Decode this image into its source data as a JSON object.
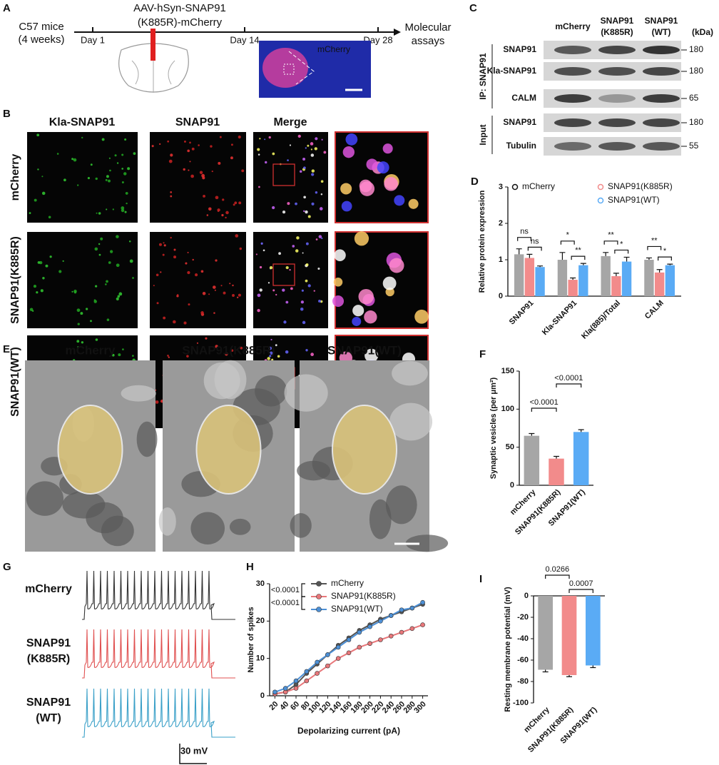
{
  "panel_a": {
    "letter": "A",
    "cohort": [
      "C57 mice",
      "(4 weeks)"
    ],
    "virus": [
      "AAV-hSyn-SNAP91",
      "(K885R)-mCherry"
    ],
    "timepoints": [
      "Day 1",
      "Day 14",
      "Day 28"
    ],
    "endpoint": [
      "Molecular",
      "assays"
    ],
    "image_label": "mCherry"
  },
  "panel_b": {
    "letter": "B",
    "columns": [
      "Kla-SNAP91",
      "SNAP91",
      "Merge"
    ],
    "rows": [
      "mCherry",
      "SNAP91(K885R)",
      "SNAP91(WT)"
    ]
  },
  "panel_c": {
    "letter": "C",
    "lanes": [
      [
        "mCherry"
      ],
      [
        "SNAP91",
        "(K885R)"
      ],
      [
        "SNAP91",
        "(WT)"
      ]
    ],
    "unit": "(kDa)",
    "groups": [
      "IP: SNAP91",
      "Input"
    ],
    "blots": [
      {
        "protein": "SNAP91",
        "kda": 180
      },
      {
        "protein": "Kla-SNAP91",
        "kda": 180
      },
      {
        "protein": "CALM",
        "kda": 65
      },
      {
        "protein": "SNAP91",
        "kda": 180
      },
      {
        "protein": "Tubulin",
        "kda": 55
      }
    ]
  },
  "panel_e": {
    "letter": "E",
    "titles": [
      "mCherry",
      "SNAP91(K885R)",
      "SNAP91(WT)"
    ]
  },
  "panel_g": {
    "letter": "G",
    "traces": [
      [
        "mCherry"
      ],
      [
        "SNAP91",
        "(K885R)"
      ],
      [
        "SNAP91",
        "(WT)"
      ]
    ],
    "scale_bar": "30 mV"
  },
  "chart_data": [
    {
      "label": "D",
      "type": "bar",
      "categories": [
        "SNAP91",
        "Kla-SNAP91",
        "Kla(885)/Total",
        "CALM"
      ],
      "series": [
        {
          "name": "mCherry",
          "color": "#a6a6a6",
          "values": [
            1.15,
            1.0,
            1.1,
            1.0
          ],
          "errors": [
            0.15,
            0.2,
            0.1,
            0.05
          ]
        },
        {
          "name": "SNAP91(K885R)",
          "color": "#f28b8b",
          "values": [
            1.05,
            0.45,
            0.55,
            0.65
          ],
          "errors": [
            0.1,
            0.05,
            0.08,
            0.08
          ]
        },
        {
          "name": "SNAP91(WT)",
          "color": "#5aabf5",
          "values": [
            0.8,
            0.85,
            0.95,
            0.85
          ],
          "errors": [
            0.03,
            0.05,
            0.12,
            0.03
          ]
        }
      ],
      "ylabel": "Relative protein expression",
      "ylim": [
        0,
        3
      ],
      "yticks": [
        0,
        1,
        2,
        3
      ],
      "significance": [
        [
          "ns",
          "ns"
        ],
        [
          "*",
          "**"
        ],
        [
          "**",
          "*"
        ],
        [
          "**",
          "*"
        ]
      ]
    },
    {
      "label": "F",
      "type": "bar",
      "categories": [
        "mCherry",
        "SNAP91(K885R)",
        "SNAP91(WT)"
      ],
      "values": [
        65,
        35,
        70
      ],
      "errors": [
        3,
        3,
        3
      ],
      "colors": [
        "#a6a6a6",
        "#f28b8b",
        "#5aabf5"
      ],
      "ylabel": "Synaptic vesicles (per μm²)",
      "ylim": [
        0,
        150
      ],
      "yticks": [
        0,
        50,
        100,
        150
      ],
      "comparisons": [
        "<0.0001",
        "<0.0001"
      ]
    },
    {
      "label": "H",
      "type": "line",
      "x": [
        20,
        40,
        60,
        80,
        100,
        120,
        140,
        160,
        180,
        200,
        220,
        240,
        260,
        280,
        300
      ],
      "series": [
        {
          "name": "mCherry",
          "color": "#555555",
          "values": [
            0.5,
            1,
            3,
            6,
            8.5,
            11,
            13.5,
            15.5,
            17.5,
            19,
            20.5,
            21.5,
            22.5,
            23.5,
            24.5
          ]
        },
        {
          "name": "SNAP91(K885R)",
          "color": "#e8777a",
          "values": [
            0.5,
            1,
            2,
            4,
            6,
            8,
            10,
            11.5,
            13,
            14,
            15,
            16,
            17,
            18,
            19
          ]
        },
        {
          "name": "SNAP91(WT)",
          "color": "#4d90d6",
          "values": [
            1,
            2,
            4,
            6.5,
            9,
            11,
            13,
            15,
            17,
            18.5,
            20,
            21.5,
            23,
            23.5,
            25
          ]
        }
      ],
      "xlabel": "Depolarizing current (pA)",
      "ylabel": "Number of spikes",
      "xlim": [
        10,
        310
      ],
      "ylim": [
        0,
        30
      ],
      "xticks": [
        20,
        40,
        60,
        80,
        100,
        120,
        140,
        160,
        180,
        200,
        220,
        240,
        260,
        280,
        300
      ],
      "yticks": [
        0,
        10,
        20,
        30
      ],
      "comparisons": [
        "<0.0001",
        "<0.0001"
      ]
    },
    {
      "label": "I",
      "type": "bar",
      "categories": [
        "mCherry",
        "SNAP91(K885R)",
        "SNAP91(WT)"
      ],
      "values": [
        -69,
        -74,
        -65
      ],
      "errors": [
        2,
        1.5,
        2
      ],
      "colors": [
        "#a6a6a6",
        "#f28b8b",
        "#5aabf5"
      ],
      "ylabel": "Resting membrane potential (mV)",
      "ylim": [
        -100,
        0
      ],
      "yticks": [
        -100,
        -80,
        -60,
        -40,
        -20,
        0
      ],
      "comparisons": [
        "0.0266",
        "0.0007"
      ]
    }
  ]
}
